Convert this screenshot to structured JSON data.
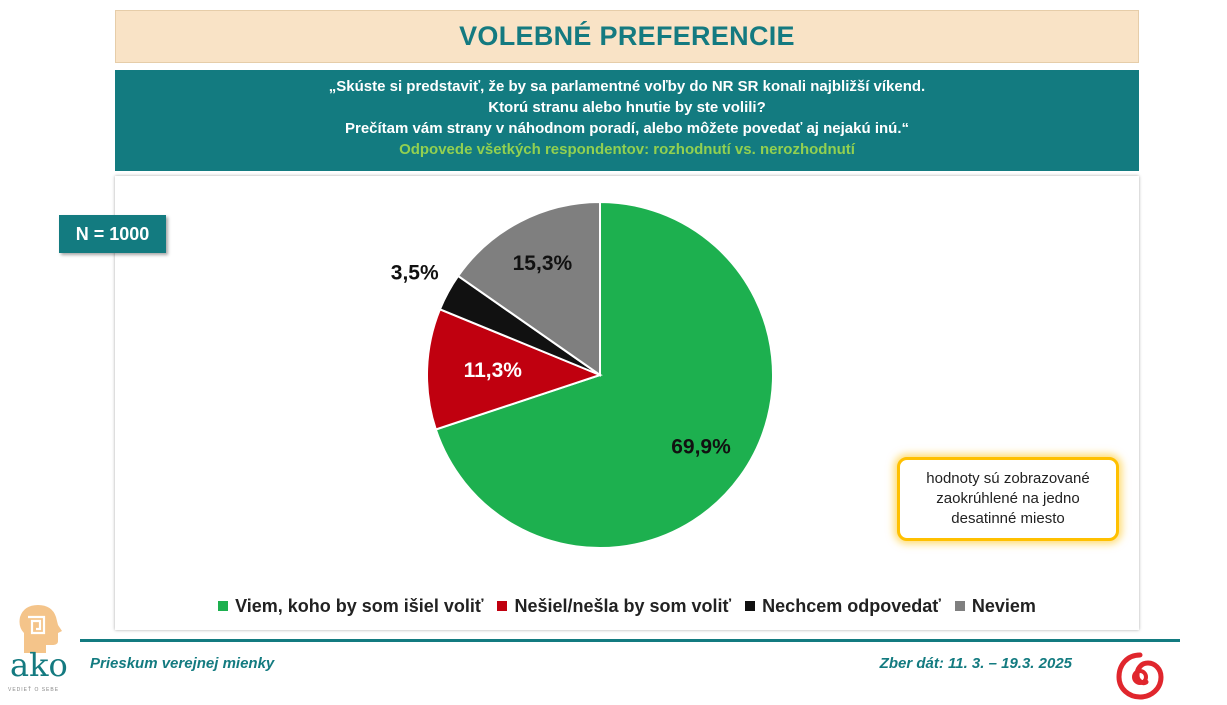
{
  "header": {
    "title": "VOLEBNÉ PREFERENCIE",
    "question_lines": [
      "„Skúste si predstaviť, že by sa parlamentné voľby do NR SR konali najbližší víkend.",
      "Ktorú stranu alebo hnutie by ste volili?",
      "Prečítam vám strany v náhodnom poradí, alebo môžete povedať aj nejakú inú.“"
    ],
    "subtitle": "Odpovede všetkých respondentov: rozhodnutí vs. nerozhodnutí"
  },
  "sample": {
    "label": "N = 1000"
  },
  "note": {
    "text": "hodnoty sú zobrazované zaokrúhlené na jedno desatinné miesto"
  },
  "chart_data": {
    "type": "pie",
    "start_angle_deg": 0,
    "direction": "clockwise",
    "slices": [
      {
        "label": "Viem, koho by som išiel voliť",
        "value": 69.9,
        "display": "69,9%",
        "color": "#1db04f",
        "label_color": "#111111"
      },
      {
        "label": "Nešiel/nešla by som voliť",
        "value": 11.3,
        "display": "11,3%",
        "color": "#c0000f",
        "label_color": "#ffffff"
      },
      {
        "label": "Nechcem odpovedať",
        "value": 3.5,
        "display": "3,5%",
        "color": "#111111",
        "label_color": "#111111"
      },
      {
        "label": "Neviem",
        "value": 15.3,
        "display": "15,3%",
        "color": "#7f7f7f",
        "label_color": "#111111"
      }
    ],
    "legend_position": "bottom"
  },
  "footer": {
    "left": "Prieskum verejnej mienky",
    "right": "Zber dát: 11. 3. – 19.3. 2025"
  },
  "logos": {
    "ako_text": "ako",
    "ako_tagline": "VEDIEŤ O SEBE"
  },
  "colors": {
    "teal": "#137b80",
    "title_bg": "#f9e3c6",
    "accent_green": "#92d050",
    "note_border": "#ffc000"
  }
}
